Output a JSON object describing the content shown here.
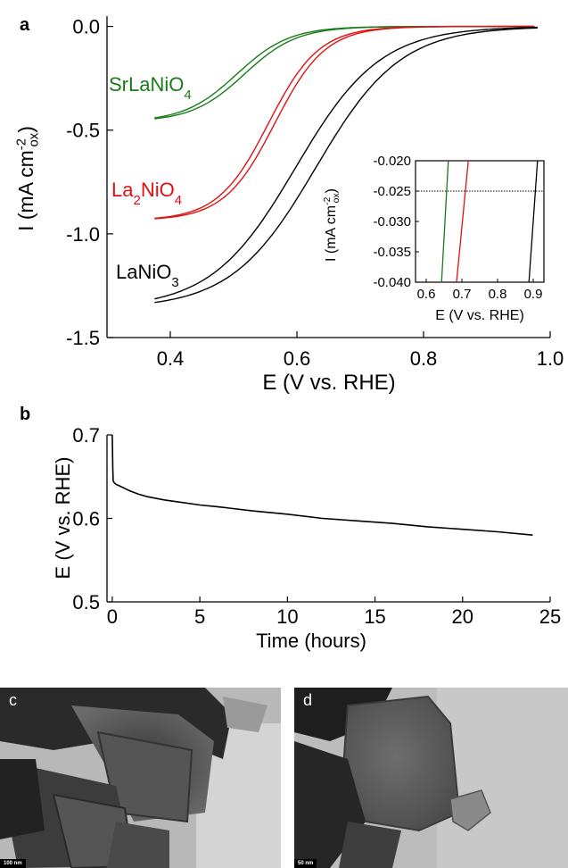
{
  "chart_data": [
    {
      "panel": "a",
      "type": "line",
      "title": "",
      "xlabel": "E (V vs. RHE)",
      "ylabel": "I (mA cm⁻²ₒₓ)",
      "ylabel_parts": {
        "main": "I (mA cm",
        "sup": "-2",
        "sub": "ox",
        "close": ")"
      },
      "xlim": [
        0.3,
        1.0
      ],
      "ylim": [
        -1.5,
        0.05
      ],
      "xticks": [
        0.4,
        0.6,
        0.8,
        1.0
      ],
      "xtick_labels": [
        "0.4",
        "0.6",
        "0.8",
        "1.0"
      ],
      "yticks": [
        0.0,
        -0.5,
        -1.0,
        -1.5
      ],
      "ytick_labels": [
        "0.0",
        "-0.5",
        "-1.0",
        "-1.5"
      ],
      "grid": false,
      "series": [
        {
          "label": "SrLaNiO4",
          "label_parts": [
            [
              "SrLaNiO",
              ""
            ],
            [
              "4",
              "sub"
            ]
          ],
          "color": "#1a7a1a",
          "limiting_current": -0.46,
          "half_wave": 0.505,
          "steep": 24,
          "hyst": 0.012,
          "x_range": [
            0.375,
            0.975
          ]
        },
        {
          "label": "La2NiO4",
          "label_parts": [
            [
              "La",
              ""
            ],
            [
              "2",
              "sub"
            ],
            [
              "NiO",
              ""
            ],
            [
              "4",
              "sub"
            ]
          ],
          "color": "#e01010",
          "limiting_current": -0.935,
          "half_wave": 0.555,
          "steep": 25,
          "hyst": 0.01,
          "x_range": [
            0.375,
            0.975
          ]
        },
        {
          "label": "LaNiO3",
          "label_parts": [
            [
              "LaNiO",
              ""
            ],
            [
              "3",
              "sub"
            ]
          ],
          "color": "#000000",
          "limiting_current": -1.36,
          "half_wave": 0.598,
          "steep": 15,
          "hyst": 0.032,
          "x_range": [
            0.375,
            0.98
          ]
        }
      ]
    },
    {
      "panel": "a-inset",
      "type": "line",
      "xlabel": "E (V vs. RHE)",
      "ylabel": "I (mA cm⁻²ₒₓ)",
      "xlim": [
        0.57,
        0.93
      ],
      "ylim": [
        -0.04,
        -0.02
      ],
      "xticks": [
        0.6,
        0.7,
        0.8,
        0.9
      ],
      "xtick_labels": [
        "0.6",
        "0.7",
        "0.8",
        "0.9"
      ],
      "yticks": [
        -0.02,
        -0.025,
        -0.03,
        -0.035,
        -0.04
      ],
      "ytick_labels": [
        "-0.020",
        "-0.025",
        "-0.030",
        "-0.035",
        "-0.040"
      ],
      "reference_line_y": -0.025,
      "series": [
        {
          "color": "#1a7a1a",
          "points": [
            [
              0.643,
              -0.04
            ],
            [
              0.662,
              -0.02
            ]
          ]
        },
        {
          "color": "#e01010",
          "points": [
            [
              0.685,
              -0.04
            ],
            [
              0.718,
              -0.02
            ]
          ]
        },
        {
          "color": "#000000",
          "points": [
            [
              0.888,
              -0.04
            ],
            [
              0.912,
              -0.02
            ]
          ]
        }
      ]
    },
    {
      "panel": "b",
      "type": "line",
      "xlabel": "Time (hours)",
      "ylabel": "E (V vs. RHE)",
      "xlim": [
        -0.3,
        25
      ],
      "ylim": [
        0.5,
        0.7
      ],
      "xticks": [
        0,
        5,
        10,
        15,
        20,
        25
      ],
      "xtick_labels": [
        "0",
        "5",
        "10",
        "15",
        "20",
        "25"
      ],
      "yticks": [
        0.5,
        0.6,
        0.7
      ],
      "ytick_labels": [
        "0.5",
        "0.6",
        "0.7"
      ],
      "series": [
        {
          "color": "#000000",
          "x": [
            0,
            0.03,
            0.05,
            0.1,
            0.2,
            0.4,
            0.7,
            1.0,
            1.5,
            2,
            3,
            4,
            5,
            6,
            8,
            10,
            12,
            14,
            16,
            18,
            20,
            22,
            24
          ],
          "y": [
            0.7,
            0.66,
            0.645,
            0.643,
            0.641,
            0.639,
            0.636,
            0.633,
            0.629,
            0.626,
            0.622,
            0.619,
            0.616,
            0.614,
            0.609,
            0.605,
            0.6,
            0.597,
            0.594,
            0.59,
            0.587,
            0.584,
            0.58
          ]
        }
      ]
    }
  ],
  "panels": {
    "a_letter": "a",
    "b_letter": "b",
    "c_letter": "c",
    "d_letter": "d",
    "c_scalebar": "100 nm",
    "d_scalebar": "50 nm"
  }
}
